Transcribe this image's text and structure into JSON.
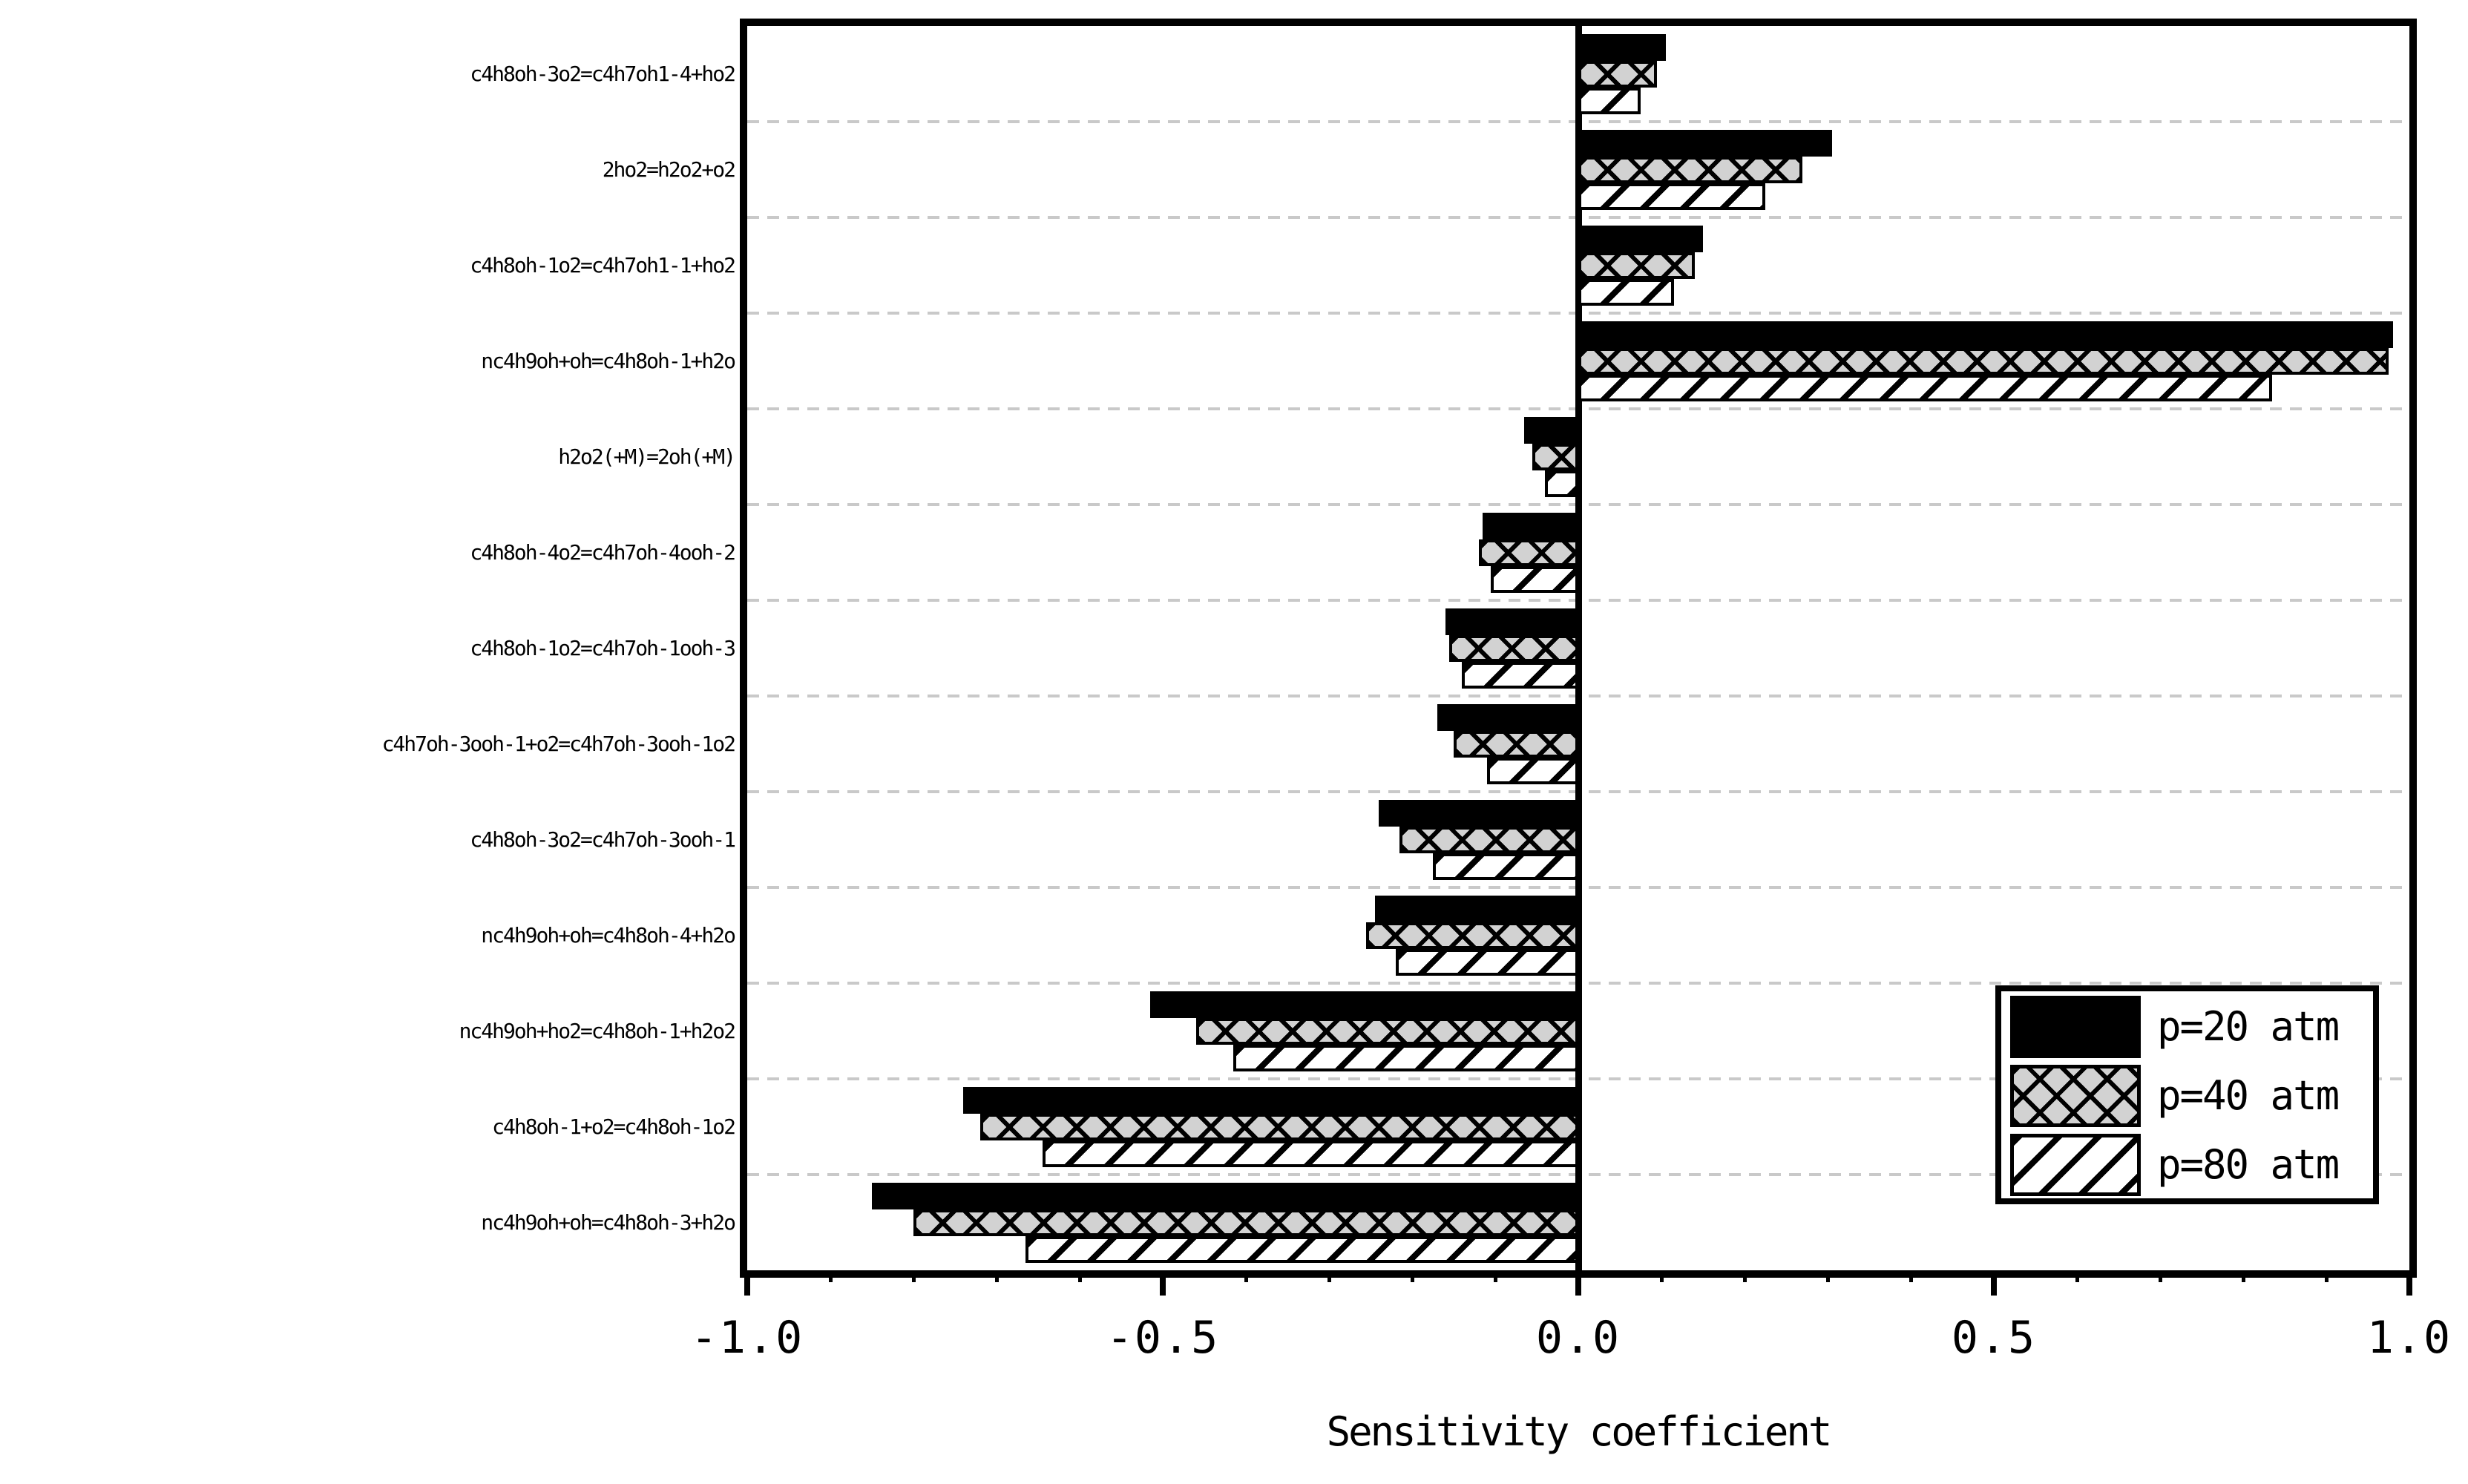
{
  "chart_data": {
    "type": "bar",
    "orientation": "horizontal",
    "title": "",
    "xlabel": "Sensitivity coefficient",
    "ylabel": "",
    "xlim": [
      -1.0,
      1.0
    ],
    "x_ticks": [
      {
        "value": -1.0,
        "label": "-1.0"
      },
      {
        "value": -0.5,
        "label": "-0.5"
      },
      {
        "value": 0.0,
        "label": "0.0"
      },
      {
        "value": 0.5,
        "label": "0.5"
      },
      {
        "value": 1.0,
        "label": "1.0"
      }
    ],
    "x_minor_tick_step": 0.1,
    "grid": "horizontal-dashed-category-separators",
    "legend_position": "lower-right",
    "categories": [
      "c4h8oh-3o2=c4h7oh1-4+ho2",
      "2ho2=h2o2+o2",
      "c4h8oh-1o2=c4h7oh1-1+ho2",
      "nc4h9oh+oh=c4h8oh-1+h2o",
      "h2o2(+M)=2oh(+M)",
      "c4h8oh-4o2=c4h7oh-4ooh-2",
      "c4h8oh-1o2=c4h7oh-1ooh-3",
      "c4h7oh-3ooh-1+o2=c4h7oh-3ooh-1o2",
      "c4h8oh-3o2=c4h7oh-3ooh-1",
      "nc4h9oh+oh=c4h8oh-4+h2o",
      "nc4h9oh+ho2=c4h8oh-1+h2o2",
      "c4h8oh-1+o2=c4h8oh-1o2",
      "nc4h9oh+oh=c4h8oh-3+h2o"
    ],
    "series": [
      {
        "name": "p=20 atm",
        "pattern": "solid-black",
        "values": [
          0.105,
          0.305,
          0.15,
          0.98,
          -0.065,
          -0.115,
          -0.16,
          -0.17,
          -0.24,
          -0.245,
          -0.515,
          -0.74,
          -0.85
        ]
      },
      {
        "name": "p=40 atm",
        "pattern": "gray-crosshatch",
        "values": [
          0.095,
          0.27,
          0.14,
          0.975,
          -0.055,
          -0.12,
          -0.155,
          -0.15,
          -0.215,
          -0.255,
          -0.46,
          -0.72,
          -0.8
        ]
      },
      {
        "name": "p=80 atm",
        "pattern": "white-diagonal-hatch",
        "values": [
          0.075,
          0.225,
          0.115,
          0.835,
          -0.04,
          -0.105,
          -0.14,
          -0.11,
          -0.175,
          -0.22,
          -0.415,
          -0.645,
          -0.665
        ]
      }
    ],
    "colors": {
      "bar_black": "#000000",
      "bar_gray_fill": "#d2d2d2",
      "hatch_lines": "#000000",
      "gridline": "#c9c9c9",
      "frame": "#000000",
      "background": "#ffffff"
    }
  }
}
